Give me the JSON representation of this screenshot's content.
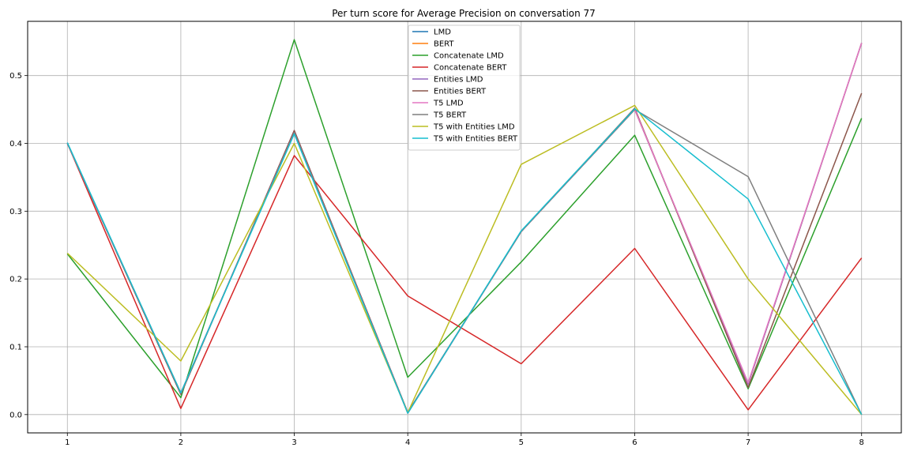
{
  "chart_data": {
    "type": "line",
    "title": "Per turn score for Average Precision on conversation 77",
    "xlabel": "",
    "ylabel": "",
    "x": [
      1,
      2,
      3,
      4,
      5,
      6,
      7,
      8
    ],
    "xlim": [
      0.65,
      8.35
    ],
    "ylim": [
      -0.027,
      0.58
    ],
    "xticks": [
      1,
      2,
      3,
      4,
      5,
      6,
      7,
      8
    ],
    "yticks": [
      0.0,
      0.1,
      0.2,
      0.3,
      0.4,
      0.5
    ],
    "ytick_labels": [
      "0.0",
      "0.1",
      "0.2",
      "0.3",
      "0.4",
      "0.5"
    ],
    "grid": true,
    "legend_position": "top-center",
    "series": [
      {
        "name": "LMD",
        "color": "#1f77b4",
        "values": [
          0.4,
          0.03,
          0.418,
          0.003,
          0.27,
          0.45,
          0.045,
          0.548
        ]
      },
      {
        "name": "BERT",
        "color": "#ff7f0e",
        "values": [
          0.4,
          0.03,
          0.418,
          0.003,
          0.27,
          0.45,
          0.045,
          0.548
        ]
      },
      {
        "name": "Concatenate LMD",
        "color": "#2ca02c",
        "values": [
          0.237,
          0.025,
          0.553,
          0.055,
          0.225,
          0.412,
          0.038,
          0.437
        ]
      },
      {
        "name": "Concatenate BERT",
        "color": "#d62728",
        "values": [
          0.4,
          0.009,
          0.382,
          0.175,
          0.075,
          0.245,
          0.007,
          0.231
        ]
      },
      {
        "name": "Entities LMD",
        "color": "#9467bd",
        "values": [
          0.4,
          0.03,
          0.419,
          0.003,
          0.27,
          0.45,
          0.045,
          0.548
        ]
      },
      {
        "name": "Entities BERT",
        "color": "#8c564b",
        "values": [
          0.4,
          0.03,
          0.419,
          0.003,
          0.27,
          0.452,
          0.04,
          0.474
        ]
      },
      {
        "name": "T5 LMD",
        "color": "#e377c2",
        "values": [
          0.4,
          0.032,
          0.416,
          0.002,
          0.27,
          0.45,
          0.047,
          0.548
        ]
      },
      {
        "name": "T5 BERT",
        "color": "#7f7f7f",
        "values": [
          0.4,
          0.032,
          0.416,
          0.002,
          0.27,
          0.45,
          0.351,
          0.0
        ]
      },
      {
        "name": "T5 with Entities LMD",
        "color": "#bcbd22",
        "values": [
          0.238,
          0.079,
          0.4,
          0.003,
          0.369,
          0.456,
          0.2,
          0.0
        ]
      },
      {
        "name": "T5 with Entities BERT",
        "color": "#17becf",
        "values": [
          0.401,
          0.032,
          0.414,
          0.002,
          0.271,
          0.451,
          0.318,
          0.0
        ]
      }
    ]
  }
}
